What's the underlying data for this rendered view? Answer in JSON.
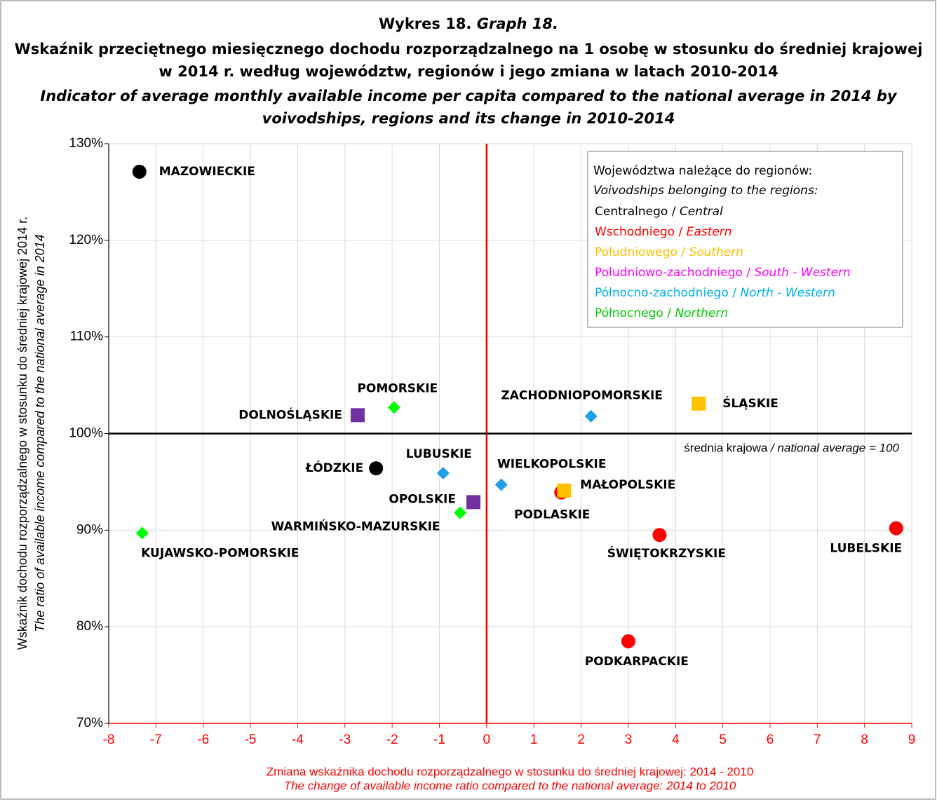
{
  "chart_data": {
    "type": "scatter",
    "title_lead": "Wykres 18.",
    "title_lead_en": "Graph 18.",
    "title_lines": [
      "Wskaźnik przeciętnego miesięcznego dochodu rozporządzalnego na 1 osobę w stosunku do średniej krajowej",
      "w 2014 r. według województw, regionów i jego zmiana w latach 2010-2014"
    ],
    "title_lines_en": [
      "Indicator of average monthly available income per capita compared to the national average in 2014 by",
      "voivodships, regions and its change in 2010-2014"
    ],
    "xlabel": "Zmiana wskaźnika dochodu rozporządzalnego w stosunku do średniej krajowej: 2014 - 2010",
    "xlabel_en": "The change of available income ratio compared to the national average: 2014 to 2010",
    "ylabel": "Wskaźnik dochodu rozporządzalnego w stosunku do średniej krajowej  2014 r.",
    "ylabel_en": "The ratio of available income  compared to the national average in 2014",
    "xlim": [
      -8,
      9
    ],
    "xticks": [
      -8,
      -7,
      -6,
      -5,
      -4,
      -3,
      -2,
      -1,
      0,
      1,
      2,
      3,
      4,
      5,
      6,
      7,
      8,
      9
    ],
    "ylim": [
      70,
      130
    ],
    "yticks": [
      {
        "value": 70,
        "label": "70%"
      },
      {
        "value": 80,
        "label": "80%"
      },
      {
        "value": 90,
        "label": "90%"
      },
      {
        "value": 100,
        "label": "100%"
      },
      {
        "value": 110,
        "label": "110%"
      },
      {
        "value": 120,
        "label": "120%"
      },
      {
        "value": 130,
        "label": "130%"
      }
    ],
    "grid": true,
    "xaxis_color": "#ff0000",
    "vline": {
      "value": 0,
      "color": "#ff0000"
    },
    "hline": {
      "value": 100,
      "color": "#000000"
    },
    "hline_label": "średnia krajowa",
    "hline_label_en": "/ national average = 100",
    "legend_title": "Województwa należące do regionów:",
    "legend_title_en": "Voivodships belonging to the regions:",
    "legend": "upper right",
    "series": [
      {
        "name": "Centralnego /",
        "name_en": "Central",
        "color": "#000000",
        "legend_color": "#000000",
        "marker": "circle",
        "labels": [
          "MAZOWIECKIE",
          "ŁÓDZKIE"
        ],
        "x": [
          -7.35,
          -2.34
        ],
        "values": [
          127.1,
          96.4
        ]
      },
      {
        "name": "Wschodniego /",
        "name_en": "Eastern",
        "color": "#ff0000",
        "legend_color": "#ff0000",
        "marker": "circle",
        "labels": [
          "LUBELSKIE",
          "PODKARPACKIE",
          "PODLASKIE",
          "ŚWIĘTOKRZYSKIE"
        ],
        "x": [
          8.67,
          3.0,
          1.58,
          3.66
        ],
        "values": [
          90.2,
          78.5,
          93.9,
          89.5
        ]
      },
      {
        "name": "Południowego /",
        "name_en": "Southern",
        "color": "#ffc000",
        "legend_color": "#ffc000",
        "marker": "square",
        "labels": [
          "ŚLĄSKIE",
          "MAŁOPOLSKIE"
        ],
        "x": [
          4.49,
          1.64
        ],
        "values": [
          103.1,
          94.1
        ]
      },
      {
        "name": "Południowo-zachodniego /",
        "name_en": "South - Western",
        "color": "#7030a0",
        "legend_color": "#ff00ff",
        "marker": "square",
        "labels": [
          "DOLNOŚLĄSKIE",
          "OPOLSKIE"
        ],
        "x": [
          -2.73,
          -0.28
        ],
        "values": [
          101.9,
          92.9
        ]
      },
      {
        "name": "Północno-zachodniego /",
        "name_en": "North - Western",
        "color": "#1e9fe6",
        "legend_color": "#00b0f0",
        "marker": "diamond",
        "labels": [
          "WIELKOPOLSKIE",
          "ZACHODNIOPOMORSKIE",
          "LUBUSKIE"
        ],
        "x": [
          0.31,
          2.21,
          -0.92
        ],
        "values": [
          94.7,
          101.8,
          95.9
        ]
      },
      {
        "name": "Północnego /",
        "name_en": "Northern",
        "color": "#00ff00",
        "legend_color": "#00cc00",
        "marker": "diamond",
        "labels": [
          "POMORSKIE",
          "KUJAWSKO-POMORSKIE",
          "WARMIŃSKO-MAZURSKIE"
        ],
        "x": [
          -1.96,
          -7.29,
          -0.56
        ],
        "values": [
          102.7,
          89.7,
          91.8
        ]
      }
    ]
  }
}
